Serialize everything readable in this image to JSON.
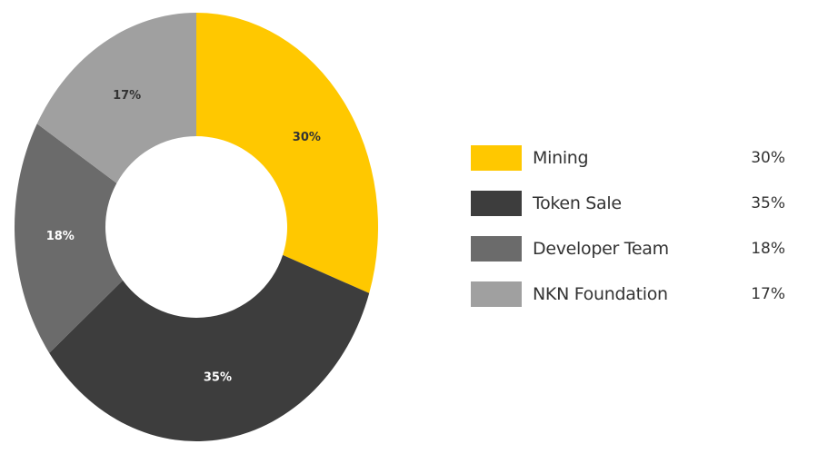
{
  "chart_data": {
    "type": "pie",
    "variant": "donut",
    "title": "",
    "categories": [
      "Mining",
      "Token Sale",
      "Developer Team",
      "NKN Foundation"
    ],
    "values": [
      30,
      35,
      18,
      17
    ],
    "value_labels": [
      "30%",
      "35%",
      "18%",
      "17%"
    ],
    "colors": [
      "#FFC800",
      "#3D3D3D",
      "#6B6B6B",
      "#A0A0A0"
    ],
    "label_colors": [
      "#333333",
      "#ffffff",
      "#ffffff",
      "#333333"
    ],
    "legend_placement": "right"
  },
  "legend": {
    "items": [
      {
        "label": "Mining",
        "value": "30%",
        "color": "#FFC800"
      },
      {
        "label": "Token Sale",
        "value": "35%",
        "color": "#3D3D3D"
      },
      {
        "label": "Developer Team",
        "value": "18%",
        "color": "#6B6B6B"
      },
      {
        "label": "NKN Foundation",
        "value": "17%",
        "color": "#A0A0A0"
      }
    ]
  }
}
